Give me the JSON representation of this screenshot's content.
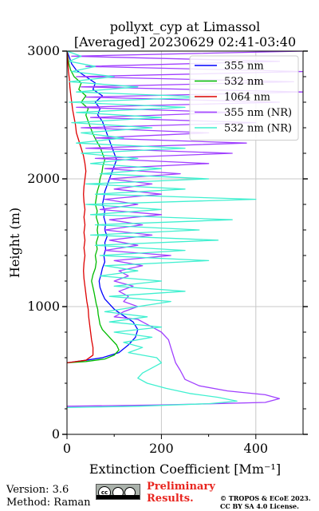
{
  "chart_data": {
    "type": "line",
    "title": "pollyxt_cyp at Limassol",
    "subtitle": "[Averaged] 20230629 02:41-03:40",
    "xlabel": "Extinction Coefficient [Mm⁻¹]",
    "ylabel": "Height (m)",
    "xlim": [
      0,
      500
    ],
    "ylim": [
      0,
      3000
    ],
    "xticks": [
      "0",
      "200",
      "400"
    ],
    "yticks": [
      "0",
      "1000",
      "2000",
      "3000"
    ],
    "grid": true,
    "legend_position": "top-right",
    "series": [
      {
        "name": "355 nm",
        "color": "#0000ff",
        "points": [
          [
            0,
            560
          ],
          [
            40,
            580
          ],
          [
            75,
            600
          ],
          [
            110,
            640
          ],
          [
            130,
            700
          ],
          [
            145,
            760
          ],
          [
            150,
            820
          ],
          [
            140,
            880
          ],
          [
            115,
            940
          ],
          [
            100,
            980
          ],
          [
            90,
            1020
          ],
          [
            80,
            1060
          ],
          [
            75,
            1100
          ],
          [
            70,
            1150
          ],
          [
            68,
            1200
          ],
          [
            72,
            1250
          ],
          [
            75,
            1300
          ],
          [
            80,
            1350
          ],
          [
            78,
            1400
          ],
          [
            82,
            1450
          ],
          [
            80,
            1500
          ],
          [
            85,
            1550
          ],
          [
            80,
            1600
          ],
          [
            82,
            1650
          ],
          [
            78,
            1700
          ],
          [
            80,
            1750
          ],
          [
            75,
            1800
          ],
          [
            78,
            1850
          ],
          [
            80,
            1900
          ],
          [
            85,
            1950
          ],
          [
            90,
            2000
          ],
          [
            95,
            2050
          ],
          [
            100,
            2100
          ],
          [
            105,
            2150
          ],
          [
            100,
            2200
          ],
          [
            95,
            2250
          ],
          [
            90,
            2300
          ],
          [
            85,
            2350
          ],
          [
            80,
            2400
          ],
          [
            75,
            2450
          ],
          [
            65,
            2500
          ],
          [
            70,
            2550
          ],
          [
            60,
            2600
          ],
          [
            75,
            2650
          ],
          [
            55,
            2700
          ],
          [
            60,
            2750
          ],
          [
            40,
            2800
          ],
          [
            20,
            2850
          ],
          [
            10,
            2900
          ],
          [
            5,
            2950
          ],
          [
            0,
            3000
          ]
        ]
      },
      {
        "name": "532 nm",
        "color": "#00bb00",
        "points": [
          [
            0,
            560
          ],
          [
            40,
            570
          ],
          [
            80,
            590
          ],
          [
            100,
            620
          ],
          [
            110,
            660
          ],
          [
            105,
            700
          ],
          [
            95,
            740
          ],
          [
            85,
            780
          ],
          [
            75,
            820
          ],
          [
            70,
            860
          ],
          [
            68,
            900
          ],
          [
            66,
            940
          ],
          [
            65,
            980
          ],
          [
            62,
            1020
          ],
          [
            60,
            1060
          ],
          [
            58,
            1100
          ],
          [
            55,
            1150
          ],
          [
            52,
            1200
          ],
          [
            55,
            1250
          ],
          [
            60,
            1300
          ],
          [
            62,
            1350
          ],
          [
            60,
            1400
          ],
          [
            64,
            1450
          ],
          [
            62,
            1500
          ],
          [
            66,
            1550
          ],
          [
            64,
            1600
          ],
          [
            66,
            1650
          ],
          [
            62,
            1700
          ],
          [
            64,
            1750
          ],
          [
            60,
            1800
          ],
          [
            62,
            1850
          ],
          [
            64,
            1900
          ],
          [
            68,
            1950
          ],
          [
            70,
            2000
          ],
          [
            74,
            2050
          ],
          [
            76,
            2100
          ],
          [
            80,
            2150
          ],
          [
            75,
            2200
          ],
          [
            70,
            2250
          ],
          [
            62,
            2300
          ],
          [
            55,
            2350
          ],
          [
            50,
            2400
          ],
          [
            45,
            2450
          ],
          [
            40,
            2500
          ],
          [
            45,
            2550
          ],
          [
            30,
            2600
          ],
          [
            40,
            2650
          ],
          [
            25,
            2700
          ],
          [
            30,
            2750
          ],
          [
            15,
            2800
          ],
          [
            8,
            2850
          ],
          [
            4,
            2900
          ],
          [
            2,
            2950
          ],
          [
            0,
            3000
          ]
        ]
      },
      {
        "name": "1064 nm",
        "color": "#dd0000",
        "points": [
          [
            0,
            560
          ],
          [
            40,
            580
          ],
          [
            55,
            620
          ],
          [
            55,
            680
          ],
          [
            52,
            740
          ],
          [
            50,
            800
          ],
          [
            48,
            860
          ],
          [
            46,
            920
          ],
          [
            45,
            980
          ],
          [
            42,
            1040
          ],
          [
            40,
            1100
          ],
          [
            38,
            1160
          ],
          [
            36,
            1220
          ],
          [
            35,
            1280
          ],
          [
            36,
            1340
          ],
          [
            38,
            1400
          ],
          [
            36,
            1460
          ],
          [
            38,
            1520
          ],
          [
            36,
            1580
          ],
          [
            38,
            1640
          ],
          [
            36,
            1700
          ],
          [
            38,
            1760
          ],
          [
            36,
            1820
          ],
          [
            35,
            1880
          ],
          [
            36,
            1940
          ],
          [
            38,
            2000
          ],
          [
            40,
            2060
          ],
          [
            38,
            2120
          ],
          [
            35,
            2180
          ],
          [
            30,
            2240
          ],
          [
            25,
            2300
          ],
          [
            20,
            2360
          ],
          [
            18,
            2420
          ],
          [
            15,
            2480
          ],
          [
            12,
            2540
          ],
          [
            10,
            2600
          ],
          [
            8,
            2660
          ],
          [
            6,
            2720
          ],
          [
            5,
            2780
          ],
          [
            3,
            2840
          ],
          [
            2,
            2900
          ],
          [
            1,
            2960
          ],
          [
            0,
            3000
          ]
        ]
      },
      {
        "name": "355 nm (NR)",
        "color": "#a040ff",
        "points": [
          [
            0,
            220
          ],
          [
            200,
            230
          ],
          [
            420,
            250
          ],
          [
            450,
            280
          ],
          [
            420,
            310
          ],
          [
            340,
            340
          ],
          [
            280,
            380
          ],
          [
            250,
            430
          ],
          [
            240,
            500
          ],
          [
            230,
            560
          ],
          [
            225,
            620
          ],
          [
            220,
            680
          ],
          [
            215,
            740
          ],
          [
            200,
            800
          ],
          [
            180,
            840
          ],
          [
            160,
            880
          ],
          [
            150,
            900
          ],
          [
            100,
            920
          ],
          [
            120,
            960
          ],
          [
            150,
            1000
          ],
          [
            120,
            1040
          ],
          [
            130,
            1080
          ],
          [
            110,
            1120
          ],
          [
            140,
            1160
          ],
          [
            100,
            1200
          ],
          [
            130,
            1240
          ],
          [
            110,
            1280
          ],
          [
            160,
            1320
          ],
          [
            100,
            1360
          ],
          [
            220,
            1400
          ],
          [
            80,
            1440
          ],
          [
            150,
            1480
          ],
          [
            90,
            1520
          ],
          [
            180,
            1560
          ],
          [
            80,
            1600
          ],
          [
            160,
            1640
          ],
          [
            90,
            1680
          ],
          [
            200,
            1720
          ],
          [
            70,
            1760
          ],
          [
            150,
            1800
          ],
          [
            80,
            1840
          ],
          [
            200,
            1880
          ],
          [
            100,
            1920
          ],
          [
            180,
            1960
          ],
          [
            90,
            2000
          ],
          [
            240,
            2040
          ],
          [
            80,
            2080
          ],
          [
            300,
            2120
          ],
          [
            60,
            2160
          ],
          [
            350,
            2200
          ],
          [
            40,
            2240
          ],
          [
            380,
            2280
          ],
          [
            60,
            2320
          ],
          [
            300,
            2360
          ],
          [
            30,
            2400
          ],
          [
            400,
            2440
          ],
          [
            50,
            2480
          ],
          [
            350,
            2520
          ],
          [
            20,
            2560
          ],
          [
            450,
            2600
          ],
          [
            40,
            2640
          ],
          [
            500,
            2680
          ],
          [
            30,
            2720
          ],
          [
            480,
            2760
          ],
          [
            20,
            2800
          ],
          [
            500,
            2840
          ],
          [
            40,
            2880
          ],
          [
            450,
            2920
          ],
          [
            10,
            2960
          ],
          [
            500,
            3000
          ]
        ]
      },
      {
        "name": "532 nm (NR)",
        "color": "#40f0d0",
        "points": [
          [
            0,
            210
          ],
          [
            150,
            220
          ],
          [
            300,
            240
          ],
          [
            360,
            260
          ],
          [
            320,
            290
          ],
          [
            260,
            320
          ],
          [
            210,
            360
          ],
          [
            170,
            400
          ],
          [
            150,
            440
          ],
          [
            160,
            480
          ],
          [
            180,
            520
          ],
          [
            200,
            560
          ],
          [
            190,
            600
          ],
          [
            130,
            640
          ],
          [
            160,
            680
          ],
          [
            120,
            720
          ],
          [
            180,
            760
          ],
          [
            100,
            800
          ],
          [
            200,
            840
          ],
          [
            90,
            880
          ],
          [
            170,
            920
          ],
          [
            80,
            960
          ],
          [
            150,
            1000
          ],
          [
            220,
            1040
          ],
          [
            90,
            1080
          ],
          [
            250,
            1120
          ],
          [
            100,
            1160
          ],
          [
            200,
            1200
          ],
          [
            70,
            1240
          ],
          [
            150,
            1280
          ],
          [
            80,
            1320
          ],
          [
            300,
            1360
          ],
          [
            70,
            1400
          ],
          [
            250,
            1440
          ],
          [
            60,
            1480
          ],
          [
            320,
            1520
          ],
          [
            50,
            1560
          ],
          [
            280,
            1600
          ],
          [
            60,
            1640
          ],
          [
            350,
            1680
          ],
          [
            50,
            1720
          ],
          [
            200,
            1760
          ],
          [
            40,
            1800
          ],
          [
            400,
            1840
          ],
          [
            60,
            1880
          ],
          [
            250,
            1920
          ],
          [
            40,
            1960
          ],
          [
            300,
            2000
          ],
          [
            70,
            2040
          ],
          [
            200,
            2080
          ],
          [
            50,
            2120
          ],
          [
            150,
            2160
          ],
          [
            30,
            2200
          ],
          [
            250,
            2240
          ],
          [
            20,
            2280
          ],
          [
            120,
            2320
          ],
          [
            30,
            2360
          ],
          [
            180,
            2400
          ],
          [
            10,
            2440
          ],
          [
            200,
            2480
          ],
          [
            20,
            2520
          ],
          [
            250,
            2560
          ],
          [
            5,
            2600
          ],
          [
            300,
            2640
          ],
          [
            20,
            2680
          ],
          [
            150,
            2720
          ],
          [
            5,
            2760
          ],
          [
            100,
            2800
          ],
          [
            10,
            2840
          ],
          [
            60,
            2880
          ],
          [
            5,
            2920
          ],
          [
            30,
            2960
          ],
          [
            0,
            3000
          ]
        ]
      }
    ]
  },
  "footer": {
    "version": "Version: 3.6",
    "method": "Method: Raman",
    "cc_label": "cc",
    "cc_sub": "BY SA",
    "preliminary_line1": "Preliminary",
    "preliminary_line2": "Results.",
    "copyright_line1": "© TROPOS & ECoE 2023.",
    "copyright_line2": "CC BY SA 4.0 License."
  }
}
